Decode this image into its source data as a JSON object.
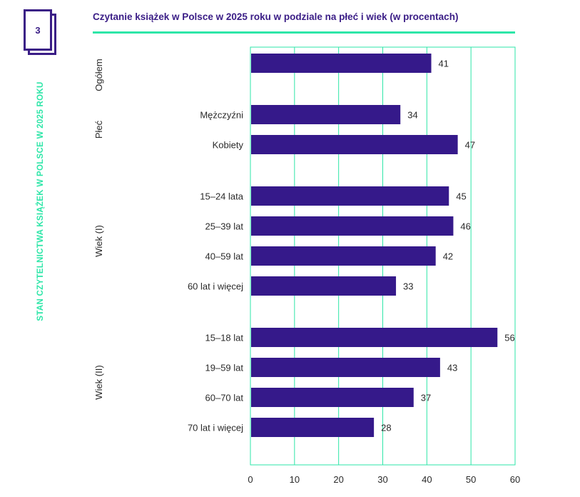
{
  "page": {
    "number": "3",
    "side_title": "STAN CZYTELNICTWA KSIĄŻEK W POLSCE W 2025 ROKU"
  },
  "colors": {
    "bar": "#35198a",
    "accent": "#2ee6a8",
    "text": "#2a2a2a",
    "title": "#3a1d86"
  },
  "chart_data": {
    "type": "bar",
    "orientation": "horizontal",
    "title": "Czytanie książek w Polsce w 2025 roku w podziale na płeć i wiek  (w procentach)",
    "xlabel": "",
    "ylabel": "",
    "xlim": [
      0,
      60
    ],
    "xticks": [
      0,
      10,
      20,
      30,
      40,
      50,
      60
    ],
    "grid": "vertical",
    "groups": [
      {
        "name": "Ogółem",
        "bars": [
          {
            "category": "",
            "value": 41
          }
        ]
      },
      {
        "name": "Płeć",
        "bars": [
          {
            "category": "Mężczyźni",
            "value": 34
          },
          {
            "category": "Kobiety",
            "value": 47
          }
        ]
      },
      {
        "name": "Wiek (I)",
        "bars": [
          {
            "category": "15–24 lata",
            "value": 45
          },
          {
            "category": "25–39 lat",
            "value": 46
          },
          {
            "category": "40–59 lat",
            "value": 42
          },
          {
            "category": "60 lat i więcej",
            "value": 33
          }
        ]
      },
      {
        "name": "Wiek (II)",
        "bars": [
          {
            "category": "15–18 lat",
            "value": 56
          },
          {
            "category": "19–59 lat",
            "value": 43
          },
          {
            "category": "60–70 lat",
            "value": 37
          },
          {
            "category": "70 lat i więcej",
            "value": 28
          }
        ]
      }
    ]
  }
}
